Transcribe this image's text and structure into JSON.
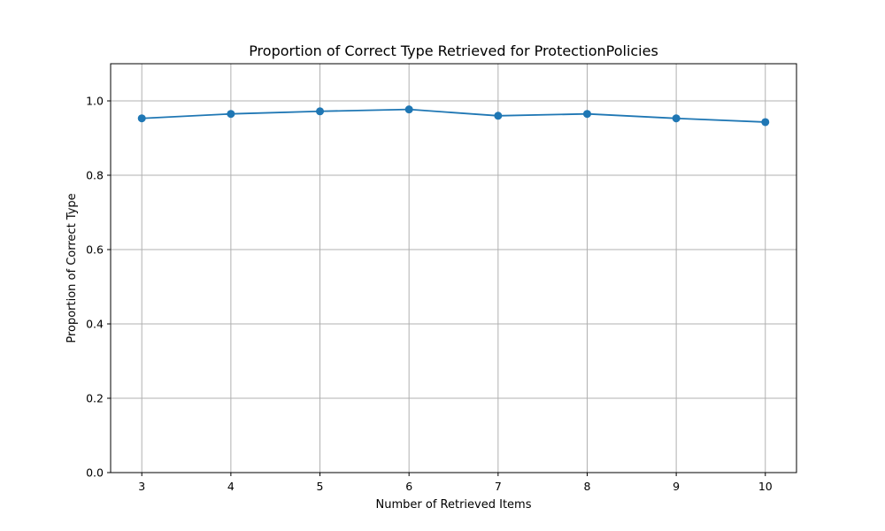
{
  "chart_data": {
    "type": "line",
    "title": "Proportion of Correct Type Retrieved for ProtectionPolicies",
    "xlabel": "Number of Retrieved Items",
    "ylabel": "Proportion of Correct Type",
    "x": [
      3,
      4,
      5,
      6,
      7,
      8,
      9,
      10
    ],
    "x_tick_labels": [
      "3",
      "4",
      "5",
      "6",
      "7",
      "8",
      "9",
      "10"
    ],
    "y_ticks": [
      0.0,
      0.2,
      0.4,
      0.6,
      0.8,
      1.0
    ],
    "y_tick_labels": [
      "0.0",
      "0.2",
      "0.4",
      "0.6",
      "0.8",
      "1.0"
    ],
    "xlim": [
      2.65,
      10.35
    ],
    "ylim": [
      0,
      1.1
    ],
    "grid": true,
    "series": [
      {
        "values": [
          0.953,
          0.965,
          0.972,
          0.977,
          0.96,
          0.965,
          0.953,
          0.943
        ],
        "color": "#1f77b4",
        "marker": "circle"
      }
    ]
  }
}
